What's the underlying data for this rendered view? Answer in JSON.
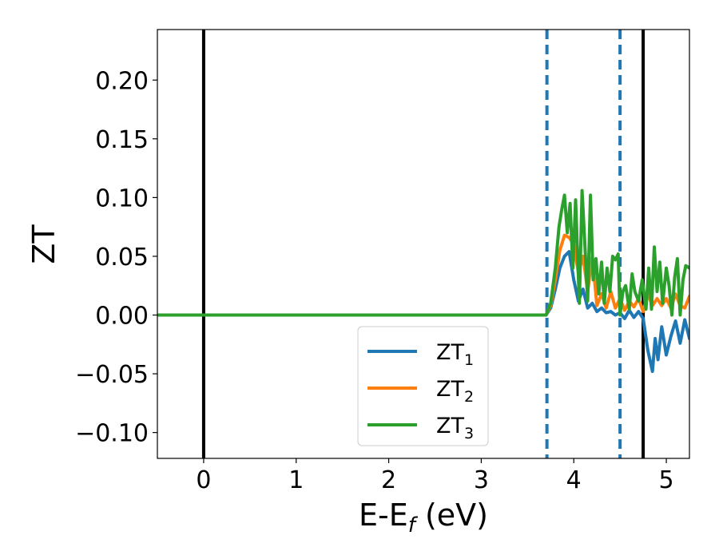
{
  "chart_data": {
    "type": "line",
    "xlabel": "E-E",
    "xlabel_subscript": "f",
    "xlabel_unit": " (eV)",
    "ylabel": "ZT",
    "xlim": [
      -0.5,
      5.25
    ],
    "ylim": [
      -0.122,
      0.243
    ],
    "x_ticks": [
      0,
      1,
      2,
      3,
      4,
      5
    ],
    "x_tick_labels": [
      "0",
      "1",
      "2",
      "3",
      "4",
      "5"
    ],
    "y_ticks": [
      -0.1,
      -0.05,
      0.0,
      0.05,
      0.1,
      0.15,
      0.2
    ],
    "y_tick_labels": [
      "−0.10",
      "−0.05",
      "0.00",
      "0.05",
      "0.10",
      "0.15",
      "0.20"
    ],
    "grid": false,
    "legend_position": "lower-center",
    "vertical_lines": [
      {
        "x": 0.0,
        "style": "solid",
        "color": "#000000"
      },
      {
        "x": 3.71,
        "style": "dashed",
        "color": "#1f77b4"
      },
      {
        "x": 4.5,
        "style": "dashed",
        "color": "#1f77b4"
      },
      {
        "x": 4.75,
        "style": "solid",
        "color": "#000000"
      }
    ],
    "series": [
      {
        "name": "ZT",
        "subscript": "1",
        "color": "#1f77b4",
        "x": [
          -0.5,
          3.7,
          3.75,
          3.8,
          3.85,
          3.9,
          3.95,
          4.0,
          4.05,
          4.1,
          4.15,
          4.2,
          4.25,
          4.3,
          4.35,
          4.4,
          4.45,
          4.5,
          4.55,
          4.6,
          4.65,
          4.7,
          4.75,
          4.8,
          4.85,
          4.88,
          4.91,
          4.95,
          5.0,
          5.05,
          5.1,
          5.15,
          5.2,
          5.25
        ],
        "y": [
          0.0,
          0.0,
          0.006,
          0.022,
          0.04,
          0.05,
          0.054,
          0.03,
          0.012,
          0.022,
          0.006,
          0.01,
          0.003,
          0.006,
          0.002,
          0.003,
          0.0,
          0.002,
          -0.003,
          0.004,
          -0.002,
          0.003,
          -0.003,
          -0.03,
          -0.048,
          -0.02,
          -0.038,
          -0.01,
          -0.034,
          -0.018,
          -0.005,
          -0.024,
          -0.004,
          -0.02
        ]
      },
      {
        "name": "ZT",
        "subscript": "2",
        "color": "#ff7f0e",
        "x": [
          -0.5,
          3.7,
          3.75,
          3.8,
          3.85,
          3.9,
          3.95,
          4.0,
          4.05,
          4.1,
          4.15,
          4.2,
          4.25,
          4.3,
          4.35,
          4.4,
          4.45,
          4.5,
          4.55,
          4.6,
          4.65,
          4.7,
          4.75,
          4.8,
          4.85,
          4.9,
          4.95,
          5.0,
          5.05,
          5.1,
          5.15,
          5.2,
          5.25
        ],
        "y": [
          0.0,
          0.0,
          0.008,
          0.03,
          0.055,
          0.068,
          0.066,
          0.06,
          0.036,
          0.05,
          0.02,
          0.05,
          0.008,
          0.018,
          0.006,
          0.02,
          0.006,
          0.014,
          0.004,
          0.012,
          0.007,
          0.014,
          0.003,
          0.018,
          0.008,
          0.014,
          0.008,
          0.014,
          0.006,
          0.018,
          0.008,
          0.006,
          0.016
        ]
      },
      {
        "name": "ZT",
        "subscript": "3",
        "color": "#2ca02c",
        "x": [
          -0.5,
          3.7,
          3.75,
          3.8,
          3.84,
          3.87,
          3.9,
          3.93,
          3.96,
          3.99,
          4.02,
          4.06,
          4.09,
          4.12,
          4.15,
          4.18,
          4.21,
          4.24,
          4.27,
          4.3,
          4.33,
          4.36,
          4.39,
          4.42,
          4.45,
          4.48,
          4.5,
          4.53,
          4.56,
          4.6,
          4.63,
          4.66,
          4.7,
          4.74,
          4.78,
          4.81,
          4.84,
          4.87,
          4.9,
          4.93,
          4.96,
          5.0,
          5.03,
          5.06,
          5.09,
          5.12,
          5.15,
          5.18,
          5.21,
          5.25
        ],
        "y": [
          0.0,
          0.0,
          0.01,
          0.04,
          0.075,
          0.09,
          0.102,
          0.07,
          0.095,
          0.04,
          0.098,
          0.01,
          0.106,
          0.06,
          0.012,
          0.102,
          0.03,
          0.048,
          0.018,
          0.045,
          0.01,
          0.04,
          0.02,
          0.05,
          0.047,
          0.052,
          0.0,
          0.02,
          0.025,
          0.005,
          0.035,
          0.02,
          0.012,
          0.03,
          0.005,
          0.04,
          0.005,
          0.058,
          0.02,
          0.045,
          0.01,
          0.04,
          0.025,
          0.0,
          0.032,
          0.048,
          0.0,
          0.03,
          0.042,
          0.04
        ]
      }
    ]
  }
}
